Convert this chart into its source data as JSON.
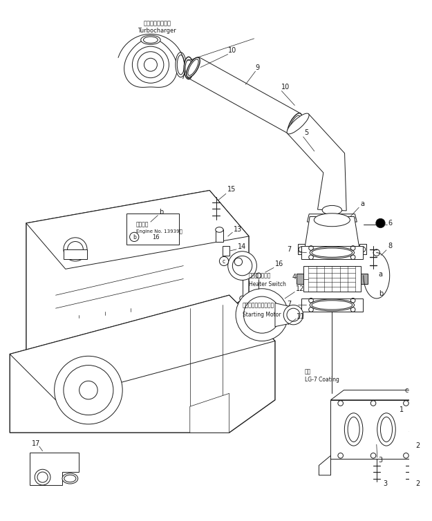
{
  "bg_color": "#ffffff",
  "line_color": "#1a1a1a",
  "fig_width": 6.25,
  "fig_height": 7.54,
  "dpi": 100,
  "labels": {
    "turbocharger_jp": "ターボチャージャ",
    "turbocharger_en": "Turbocharger",
    "heater_switch_jp": "ヒータスイッチ",
    "heater_switch_en": "Heater Switch",
    "starting_motor_jp": "スターティングモータ",
    "starting_motor_en": "Starting Motor",
    "engine_no_jp": "適用番機",
    "engine_no_en": "Engine No. 13939～",
    "coating_jp": "塗布",
    "coating_en": "LG-7 Coating"
  },
  "colors": {
    "black": "#1a1a1a",
    "white": "#ffffff",
    "gray": "#888888"
  }
}
